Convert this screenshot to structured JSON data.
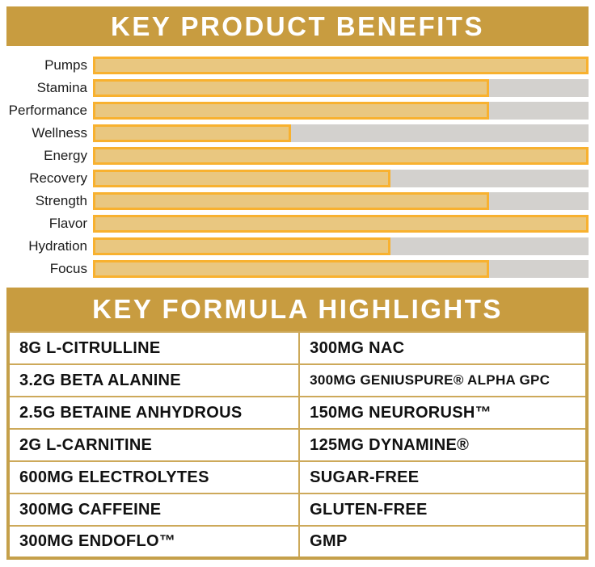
{
  "benefits": {
    "title": "KEY PRODUCT BENEFITS"
  },
  "formula": {
    "title": "KEY FORMULA HIGHLIGHTS"
  },
  "chart_data": [
    {
      "type": "bar",
      "orientation": "horizontal",
      "title": "KEY PRODUCT BENEFITS",
      "categories": [
        "Pumps",
        "Stamina",
        "Performance",
        "Wellness",
        "Energy",
        "Recovery",
        "Strength",
        "Flavor",
        "Hydration",
        "Focus"
      ],
      "values": [
        100,
        80,
        80,
        40,
        100,
        60,
        80,
        100,
        60,
        80
      ],
      "xlim": [
        0,
        100
      ],
      "values_are_fill_percent": true,
      "grid": false,
      "legend": false
    },
    {
      "type": "table",
      "title": "KEY FORMULA HIGHLIGHTS",
      "columns": [
        "left",
        "right"
      ],
      "rows": [
        [
          "8G L-CITRULLINE",
          "300MG NAC"
        ],
        [
          "3.2G BETA ALANINE",
          "300MG GENIUSPURE® ALPHA GPC"
        ],
        [
          "2.5G BETAINE ANHYDROUS",
          "150MG NEURORUSH™"
        ],
        [
          "2G L-CARNITINE",
          "125MG DYNAMINE®"
        ],
        [
          "600MG ELECTROLYTES",
          "SUGAR-FREE"
        ],
        [
          "300MG CAFFEINE",
          "GLUTEN-FREE"
        ],
        [
          "300MG ENDOFLO™",
          "GMP"
        ]
      ]
    }
  ],
  "colors": {
    "header_background": "#C89C40",
    "header_text": "#FFFFFF",
    "bar_fill": "#E9C780",
    "bar_border": "#F8B12F",
    "bar_track": "#D3D1CE",
    "table_border": "#C5A04A",
    "table_divider": "#CDA95A",
    "body_text": "#111111"
  }
}
